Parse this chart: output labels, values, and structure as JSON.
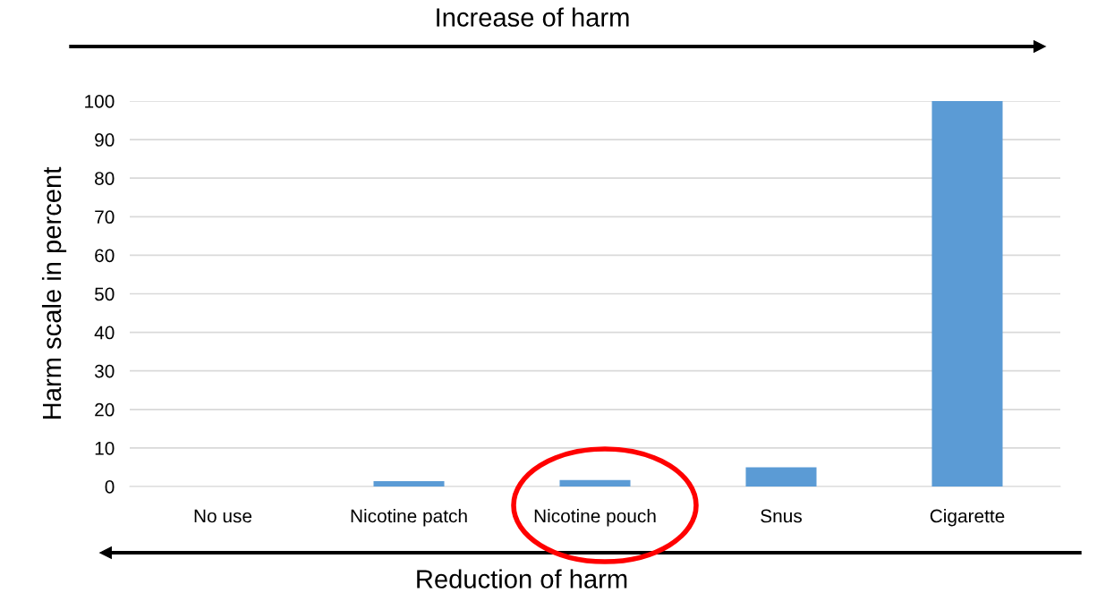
{
  "chart_data": {
    "type": "bar",
    "categories": [
      "No use",
      "Nicotine patch",
      "Nicotine pouch",
      "Snus",
      "Cigarette"
    ],
    "values": [
      0,
      1.4,
      1.7,
      5,
      100
    ],
    "color": "#5b9bd5",
    "ylabel": "Harm scale in percent",
    "ylim": [
      0,
      100
    ],
    "yticks": [
      0,
      10,
      20,
      30,
      40,
      50,
      60,
      70,
      80,
      90,
      100
    ],
    "grid": "y",
    "annotations": [
      "Increase of harm",
      "Reduction of harm"
    ]
  }
}
